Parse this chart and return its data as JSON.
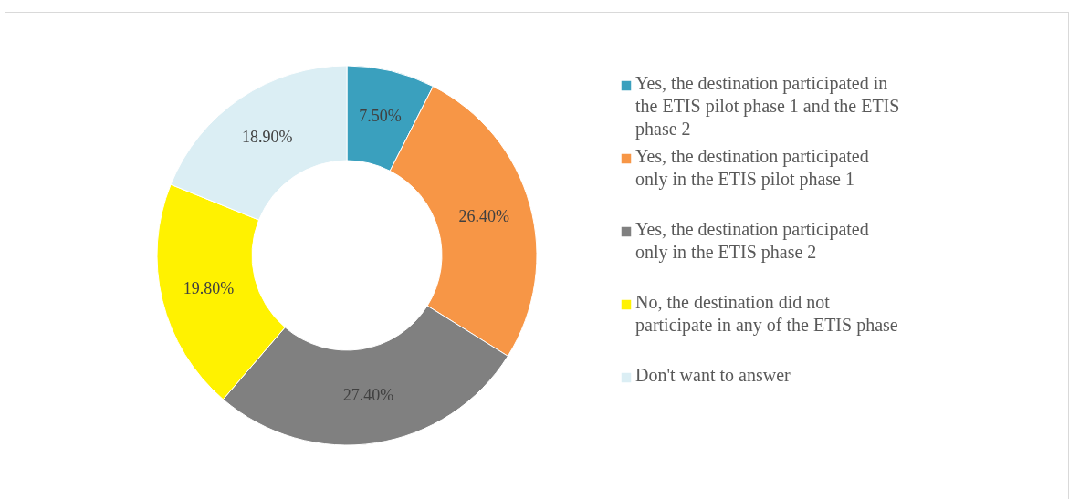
{
  "chart_data": {
    "type": "donut",
    "categories": [
      "Yes, the destination participated in the ETIS pilot phase 1 and the ETIS phase 2",
      "Yes, the destination participated only in the ETIS pilot phase 1",
      "Yes, the destination participated only in the ETIS phase 2",
      "No, the destination did not participate in any of the ETIS phase",
      "Don't want to answer"
    ],
    "values": [
      7.5,
      26.4,
      27.4,
      19.8,
      18.9
    ],
    "value_labels": [
      "7.50%",
      "26.40%",
      "27.40%",
      "19.80%",
      "18.90%"
    ],
    "colors": [
      "#3aa0be",
      "#f79646",
      "#808080",
      "#fff200",
      "#dbeef4"
    ],
    "legend": "right"
  }
}
